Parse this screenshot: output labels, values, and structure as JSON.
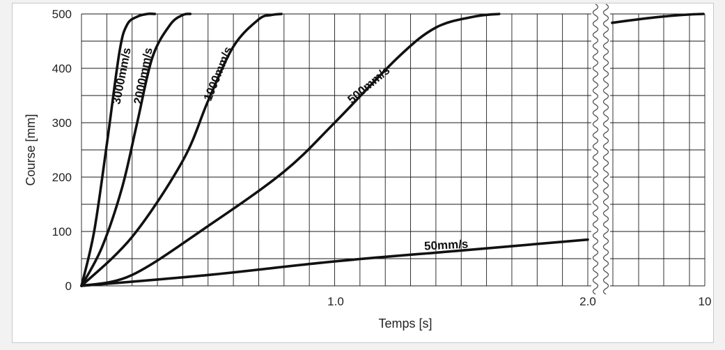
{
  "chart_data": {
    "type": "line",
    "title": "",
    "xlabel": "Temps [s]",
    "ylabel": "Course  [mm]",
    "x_tick_labels": [
      "1.0",
      "2.0",
      "10"
    ],
    "y_ticks": [
      0,
      100,
      200,
      300,
      400,
      500
    ],
    "ylim": [
      0,
      500
    ],
    "xlim_segment_1": [
      0,
      2.0
    ],
    "grid": true,
    "axis_break": "between 2.0 and 10",
    "series": [
      {
        "name": "3000mm/s",
        "x": [
          0,
          0.05,
          0.1,
          0.15,
          0.18,
          0.22,
          0.26,
          0.29
        ],
        "y": [
          0,
          100,
          260,
          430,
          480,
          495,
          500,
          500
        ]
      },
      {
        "name": "2000mm/s",
        "x": [
          0,
          0.08,
          0.16,
          0.22,
          0.28,
          0.35,
          0.4,
          0.43
        ],
        "y": [
          0,
          70,
          180,
          300,
          420,
          480,
          498,
          500
        ]
      },
      {
        "name": "1000mm/s",
        "x": [
          0,
          0.2,
          0.4,
          0.5,
          0.6,
          0.7,
          0.75,
          0.79
        ],
        "y": [
          0,
          90,
          230,
          340,
          440,
          490,
          498,
          500
        ]
      },
      {
        "name": "500mm/s",
        "x": [
          0,
          0.2,
          0.5,
          0.8,
          1.0,
          1.25,
          1.4,
          1.55,
          1.65
        ],
        "y": [
          0,
          20,
          110,
          210,
          300,
          420,
          475,
          495,
          500
        ]
      },
      {
        "name": "50mm/s",
        "x": [
          0,
          0.5,
          1.0,
          1.5,
          2.0
        ],
        "y": [
          0,
          20,
          45,
          65,
          85
        ]
      }
    ],
    "tail_segment_label": "10",
    "tail_segment_y": [
      485,
      500
    ]
  }
}
